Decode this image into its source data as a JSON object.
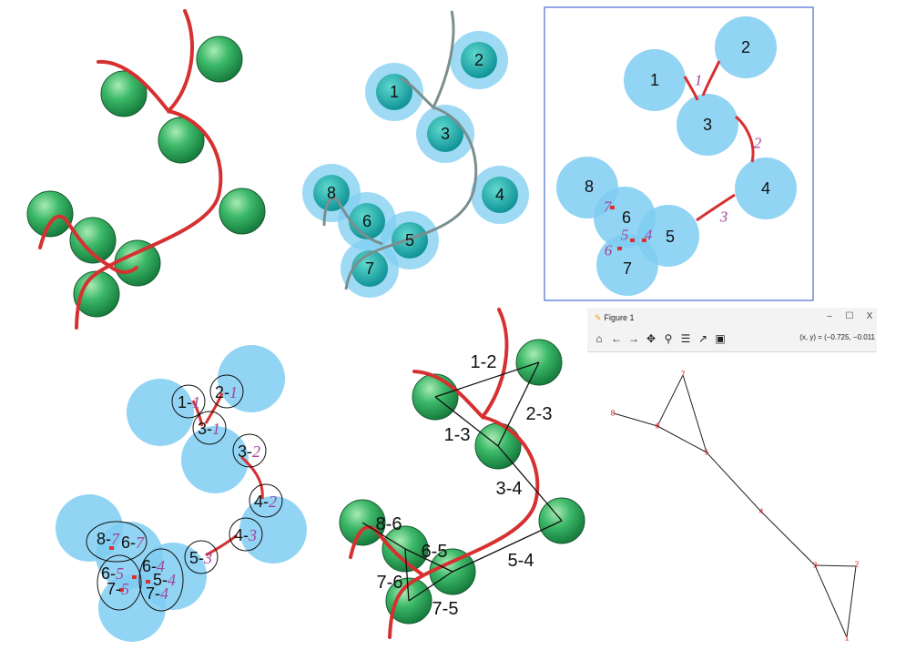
{
  "panel3": {
    "spheres": [
      "1",
      "2",
      "3",
      "4",
      "5",
      "6",
      "7",
      "8"
    ],
    "segments": [
      "1",
      "2",
      "3"
    ],
    "contacts": [
      "7",
      "5",
      "4",
      "6"
    ]
  },
  "panel2": {
    "spheres": [
      "1",
      "2",
      "3",
      "4",
      "5",
      "6",
      "7",
      "8"
    ]
  },
  "panel4": {
    "labels": [
      {
        "a": "1-",
        "b": "1"
      },
      {
        "a": "2-",
        "b": "1"
      },
      {
        "a": "3-",
        "b": "1"
      },
      {
        "a": "3-",
        "b": "2"
      },
      {
        "a": "4-",
        "b": "2"
      },
      {
        "a": "4-",
        "b": "3"
      },
      {
        "a": "5-",
        "b": "3"
      },
      {
        "a": "8-",
        "b": "7"
      },
      {
        "a": "6-",
        "b": "7"
      },
      {
        "a": "6-",
        "b": "5"
      },
      {
        "a": "6-",
        "b": "4"
      },
      {
        "a": "7-",
        "b": "5"
      },
      {
        "a": "5-",
        "b": "4"
      },
      {
        "a": "7-",
        "b": "4"
      }
    ]
  },
  "panel5": {
    "edges": [
      "1-2",
      "2-3",
      "1-3",
      "3-4",
      "8-6",
      "6-5",
      "5-4",
      "7-6",
      "7-5"
    ]
  },
  "figure_window": {
    "title": "Figure 1",
    "minimize": "–",
    "maximize": "☐",
    "close": "X",
    "coordinates": "(x, y) = (−0.725, −0.011",
    "toolbar": [
      {
        "name": "home-icon",
        "glyph": "⌂"
      },
      {
        "name": "back-icon",
        "glyph": "←"
      },
      {
        "name": "forward-icon",
        "glyph": "→"
      },
      {
        "name": "pan-icon",
        "glyph": "✥"
      },
      {
        "name": "zoom-icon",
        "glyph": "⚲"
      },
      {
        "name": "configure-subplots-icon",
        "glyph": "☰"
      },
      {
        "name": "edit-axis-icon",
        "glyph": "↗"
      },
      {
        "name": "save-icon",
        "glyph": "▣"
      }
    ]
  },
  "graph_nodes": [
    "7",
    "8",
    "6",
    "5",
    "4",
    "3",
    "2",
    "1"
  ],
  "colors": {
    "chain": "#d63031",
    "sphere_green": "#2faa5a",
    "sphere_blue": "#7fcdf2",
    "highlight": "#a0459a",
    "frame": "#4a6fd6"
  }
}
